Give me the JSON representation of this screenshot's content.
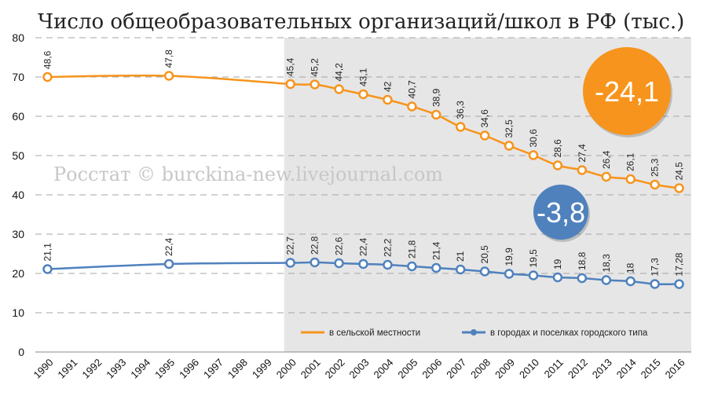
{
  "chart_data": {
    "type": "line",
    "title": "Число общеобразовательных организаций/школ в РФ (тыс.)",
    "watermark": "Росстат © burckina-new.livejournal.com",
    "xlabel": "",
    "ylabel": "",
    "x_ticks": [
      "1990",
      "1991",
      "1992",
      "1993",
      "1994",
      "1995",
      "1996",
      "1997",
      "1998",
      "1999",
      "2000",
      "2001",
      "2002",
      "2003",
      "2004",
      "2005",
      "2006",
      "2007",
      "2008",
      "2009",
      "2010",
      "2011",
      "2012",
      "2013",
      "2014",
      "2015",
      "2016"
    ],
    "ylim": [
      0,
      80
    ],
    "y_ticks": [
      0,
      10,
      20,
      30,
      40,
      50,
      60,
      70,
      80
    ],
    "grid": true,
    "legend_position": "bottom-right",
    "shaded_x_range": [
      2000,
      2016
    ],
    "series": [
      {
        "name": "в сельской местности",
        "color": "#f7941d",
        "x": [
          1990,
          1995,
          2000,
          2001,
          2002,
          2003,
          2004,
          2005,
          2006,
          2007,
          2008,
          2009,
          2010,
          2011,
          2012,
          2013,
          2014,
          2015,
          2016
        ],
        "y": [
          70,
          70.3,
          68.2,
          68.1,
          66.9,
          65.6,
          64.2,
          62.5,
          60.4,
          57.3,
          55.1,
          52.5,
          50.1,
          47.5,
          46.3,
          44.6,
          44,
          42.6,
          41.7
        ],
        "data_labels": [
          "48,6",
          "47,8",
          "45,4",
          "45,2",
          "44,2",
          "43,1",
          "42",
          "40,7",
          "38,9",
          "36,3",
          "34,6",
          "32,5",
          "30,6",
          "28,6",
          "27,4",
          "26,4",
          "26,1",
          "25,3",
          "24,5"
        ]
      },
      {
        "name": "в городах и поселках  городского типа",
        "color": "#4f81bd",
        "x": [
          1990,
          1995,
          2000,
          2001,
          2002,
          2003,
          2004,
          2005,
          2006,
          2007,
          2008,
          2009,
          2010,
          2011,
          2012,
          2013,
          2014,
          2015,
          2016
        ],
        "y": [
          21.1,
          22.4,
          22.7,
          22.8,
          22.6,
          22.4,
          22.2,
          21.8,
          21.4,
          21,
          20.5,
          19.9,
          19.5,
          19,
          18.8,
          18.3,
          18,
          17.3,
          17.28
        ],
        "data_labels": [
          "21,1",
          "22,4",
          "22,7",
          "22,8",
          "22,6",
          "22,4",
          "22,2",
          "21,8",
          "21,4",
          "21",
          "20,5",
          "19,9",
          "19,5",
          "19",
          "18,8",
          "18,3",
          "18",
          "17,3",
          "17,28"
        ]
      }
    ],
    "annotations": [
      {
        "text": "-24,1",
        "color": "#f7941d"
      },
      {
        "text": "-3,8",
        "color": "#4f81bd"
      }
    ]
  }
}
